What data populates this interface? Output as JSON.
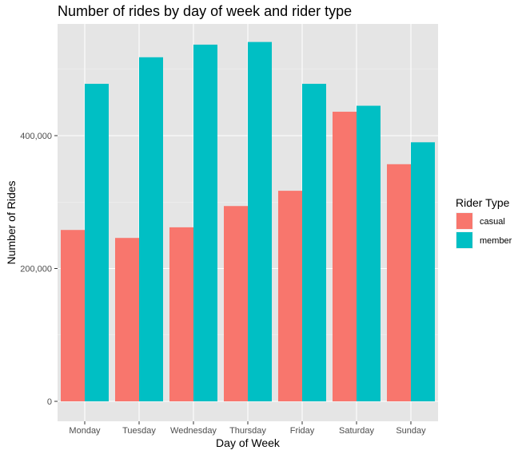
{
  "chart_data": {
    "type": "bar",
    "title": "Number of rides by day of week and rider type",
    "xlabel": "Day of Week",
    "ylabel": "Number of Rides",
    "categories": [
      "Monday",
      "Tuesday",
      "Wednesday",
      "Thursday",
      "Friday",
      "Saturday",
      "Sunday"
    ],
    "series": [
      {
        "name": "casual",
        "color": "#F8766D",
        "values": [
          258000,
          246000,
          262000,
          294000,
          317000,
          436000,
          357000
        ]
      },
      {
        "name": "member",
        "color": "#00BFC4",
        "values": [
          478000,
          518000,
          537000,
          541000,
          478000,
          445000,
          390000
        ]
      }
    ],
    "ylim": [
      0,
      570000
    ],
    "yticks": [
      {
        "value": 0,
        "label": "0"
      },
      {
        "value": 200000,
        "label": "200,000"
      },
      {
        "value": 400000,
        "label": "400,000"
      }
    ],
    "legend": {
      "title": "Rider Type",
      "placement": "right"
    },
    "grid": true,
    "colors": {
      "panel": "#E5E5E5",
      "grid_major": "#FFFFFF",
      "casual": "#F8766D",
      "member": "#00BFC4"
    }
  }
}
